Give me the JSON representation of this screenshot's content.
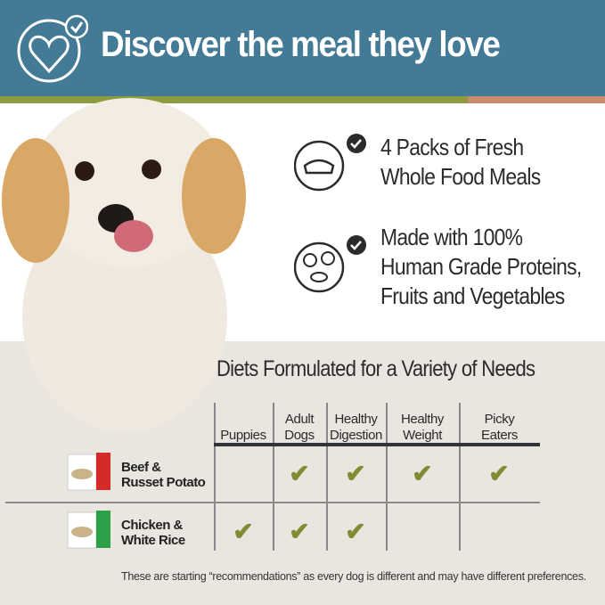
{
  "header": {
    "title": "Discover the meal they love",
    "icon": "heart-check-icon"
  },
  "colors": {
    "header_bg": "#437a96",
    "stripe_green": "#8c9c3e",
    "stripe_orange": "#c98b6c",
    "check": "#7f8c33",
    "beige": "#e9e6e0"
  },
  "features": [
    {
      "icon": "food-bowl-check-icon",
      "lines": [
        "4 Packs of Fresh",
        "Whole Food Meals"
      ]
    },
    {
      "icon": "produce-meat-check-icon",
      "lines": [
        "Made with 100%",
        "Human Grade Proteins,",
        "Fruits and Vegetables"
      ]
    }
  ],
  "table": {
    "title": "Diets Formulated for a Variety of Needs",
    "columns": [
      [
        "",
        "Puppies"
      ],
      [
        "Adult",
        "Dogs"
      ],
      [
        "Healthy",
        "Digestion"
      ],
      [
        "Healthy",
        "Weight"
      ],
      [
        "Picky",
        "Eaters"
      ]
    ],
    "rows": [
      {
        "label": [
          "Beef &",
          "Russet Potato"
        ],
        "package_color": "#d42a2a",
        "checks": [
          false,
          true,
          true,
          true,
          true
        ]
      },
      {
        "label": [
          "Chicken &",
          "White Rice"
        ],
        "package_color": "#2ea04a",
        "checks": [
          true,
          true,
          true,
          false,
          false
        ]
      }
    ],
    "check_glyph": "✔",
    "footnote": "These are starting “recommendations” as every dog is different and may have different preferences."
  }
}
